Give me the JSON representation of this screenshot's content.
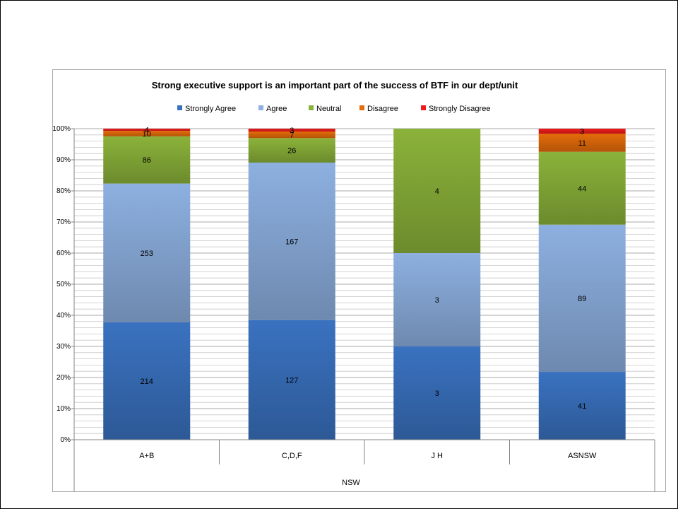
{
  "chart_data": {
    "type": "bar",
    "stacked": "percent",
    "title": "Strong executive support is an important part of the success of BTF in our dept/unit",
    "categories": [
      "A+B",
      "C,D,F",
      "J H",
      "ASNSW"
    ],
    "group_label": "NSW",
    "y_ticks": [
      "0%",
      "10%",
      "20%",
      "30%",
      "40%",
      "50%",
      "60%",
      "70%",
      "80%",
      "90%",
      "100%"
    ],
    "ylim": [
      0,
      100
    ],
    "grid": true,
    "legend_position": "top",
    "series": [
      {
        "name": "Strongly Agree",
        "values": [
          214,
          127,
          3,
          41
        ],
        "labels": [
          "214",
          "127",
          "3",
          "41"
        ],
        "color": "#3a72c0"
      },
      {
        "name": "Agree",
        "values": [
          253,
          167,
          3,
          89
        ],
        "labels": [
          "253",
          "167",
          "3",
          "89"
        ],
        "color": "#8db0e0"
      },
      {
        "name": "Neutral",
        "values": [
          86,
          26,
          4,
          44
        ],
        "labels": [
          "86",
          "26",
          "4",
          "44"
        ],
        "color": "#8bb23a"
      },
      {
        "name": "Disagree",
        "values": [
          10,
          7,
          0,
          11
        ],
        "labels": [
          "10",
          "7",
          "",
          "11"
        ],
        "color": "#e46c0a"
      },
      {
        "name": "Strongly Disagree",
        "values": [
          4,
          3,
          0,
          3
        ],
        "labels": [
          "4",
          "3",
          "",
          "3"
        ],
        "color": "#ee1c1c"
      }
    ]
  }
}
